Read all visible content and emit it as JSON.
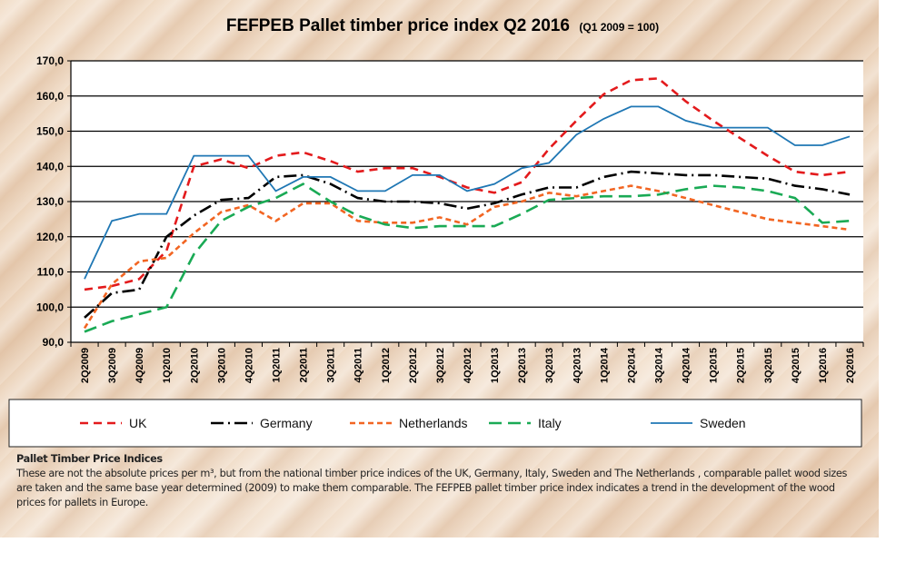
{
  "chart_data": {
    "type": "line",
    "title": "FEFPEB Pallet timber price index Q2 2016",
    "subtitle": "(Q1 2009 = 100)",
    "xlabel": "",
    "ylabel": "",
    "ylim": [
      90,
      170
    ],
    "yticks": [
      "90,0",
      "100,0",
      "110,0",
      "120,0",
      "130,0",
      "140,0",
      "150,0",
      "160,0",
      "170,0"
    ],
    "grid": true,
    "legend": "bottom",
    "categories": [
      "2Q2009",
      "3Q2009",
      "4Q2009",
      "1Q2010",
      "2Q2010",
      "3Q2010",
      "4Q2010",
      "1Q2011",
      "2Q2011",
      "3Q2011",
      "4Q2011",
      "1Q2012",
      "2Q2012",
      "3Q2012",
      "4Q2012",
      "1Q2013",
      "2Q2013",
      "3Q2013",
      "4Q2013",
      "1Q2014",
      "2Q2014",
      "3Q2014",
      "4Q2014",
      "1Q2015",
      "2Q2015",
      "3Q2015",
      "4Q2015",
      "1Q2016",
      "2Q2016"
    ],
    "series": [
      {
        "name": "UK",
        "color": "#e31a1c",
        "dash": "dash",
        "values": [
          105,
          106,
          108,
          116,
          140,
          142,
          139.5,
          143,
          144,
          141.5,
          138.5,
          139.5,
          139.5,
          137,
          134,
          132.5,
          135.5,
          145,
          153,
          160.5,
          164.5,
          165,
          158.5,
          153,
          148,
          143,
          138.5,
          137.5,
          138.5
        ]
      },
      {
        "name": "Germany",
        "color": "#000000",
        "dash": "dashdot",
        "values": [
          97,
          104,
          105,
          120,
          126,
          130.5,
          131,
          137,
          137.5,
          135,
          131,
          130,
          130,
          129.5,
          128,
          129.5,
          132,
          134,
          134,
          137,
          138.5,
          138,
          137.5,
          137.5,
          137,
          136.5,
          134.5,
          133.5,
          132
        ]
      },
      {
        "name": "Netherlands",
        "color": "#f26522",
        "dash": "shortdash",
        "values": [
          94,
          106.5,
          113,
          114,
          121,
          127,
          129,
          124.5,
          129.5,
          129.5,
          124.5,
          124,
          124,
          125.5,
          123.5,
          128.5,
          130,
          132.5,
          131.5,
          133,
          134.5,
          133,
          131,
          129,
          127,
          125,
          124,
          123,
          122
        ]
      },
      {
        "name": "Italy",
        "color": "#1aaa55",
        "dash": "longdash",
        "values": [
          93,
          96,
          98,
          100,
          115,
          124.5,
          128.5,
          131,
          135,
          130,
          126,
          123.5,
          122.5,
          123,
          123,
          123,
          126.5,
          130.5,
          131,
          131.5,
          131.5,
          132,
          133.5,
          134.5,
          134,
          133,
          131,
          124,
          124.5
        ]
      },
      {
        "name": "Sweden",
        "color": "#1f77b4",
        "dash": "solid",
        "values": [
          108,
          124.5,
          126.5,
          126.5,
          143,
          143,
          143,
          133,
          137,
          137,
          133,
          133,
          137.5,
          137.5,
          133,
          135,
          139.5,
          141,
          149,
          153.5,
          157,
          157,
          153,
          151,
          151,
          151,
          146,
          146,
          148.5
        ]
      }
    ]
  },
  "footer": {
    "title": "Pallet Timber Price Indices",
    "text": "These are not the absolute prices per m³, but from the national timber price indices of the UK, Germany, Italy, Sweden and The Netherlands , comparable pallet  wood sizes are taken and the same base year determined (2009) to make them comparable. The FEFPEB pallet timber price index indicates a trend in the development of the wood prices for pallets in Europe."
  }
}
